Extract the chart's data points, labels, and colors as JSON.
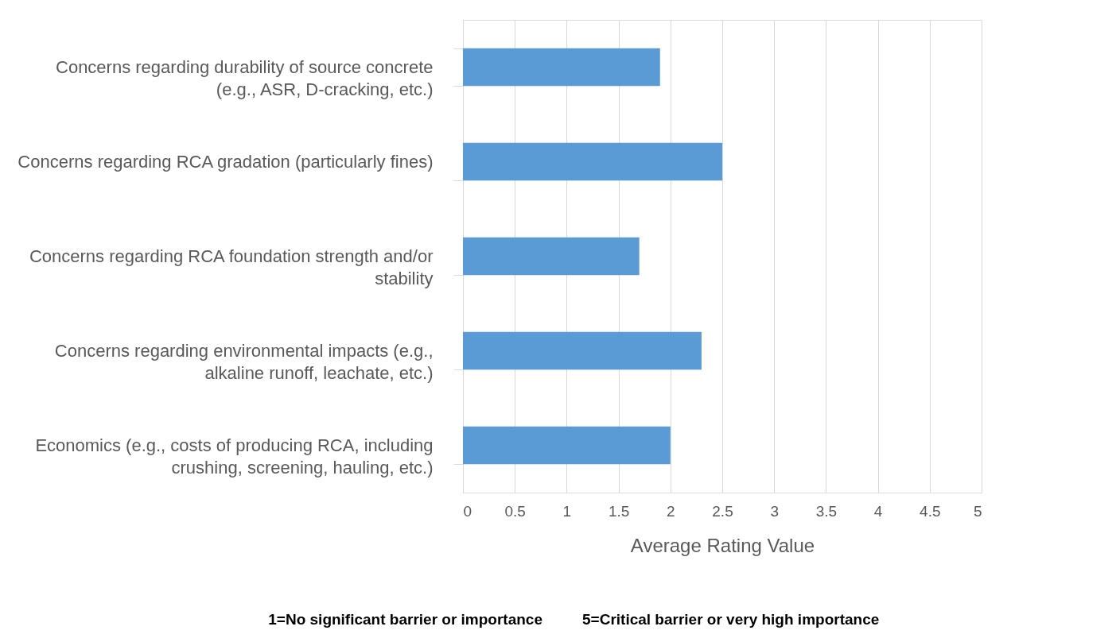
{
  "chart_data": {
    "type": "bar",
    "orientation": "horizontal",
    "xlabel": "Average Rating Value",
    "categories": [
      "Concerns regarding durability of source concrete (e.g., ASR, D-cracking, etc.)",
      "Concerns regarding RCA gradation (particularly fines)",
      "Concerns regarding RCA foundation strength and/or stability",
      "Concerns regarding environmental impacts (e.g., alkaline runoff, leachate, etc.)",
      "Economics (e.g., costs of producing RCA, including crushing, screening, hauling, etc.)"
    ],
    "values": [
      1.9,
      2.5,
      1.7,
      2.3,
      2.0
    ],
    "color": "#5b9bd5",
    "xlim": [
      0,
      5
    ],
    "xticks": [
      0,
      0.5,
      1,
      1.5,
      2,
      2.5,
      3,
      3.5,
      4,
      4.5,
      5
    ],
    "grid": "x",
    "annotations": [
      "1=No significant barrier or importance",
      "5=Critical barrier or very high importance"
    ]
  }
}
